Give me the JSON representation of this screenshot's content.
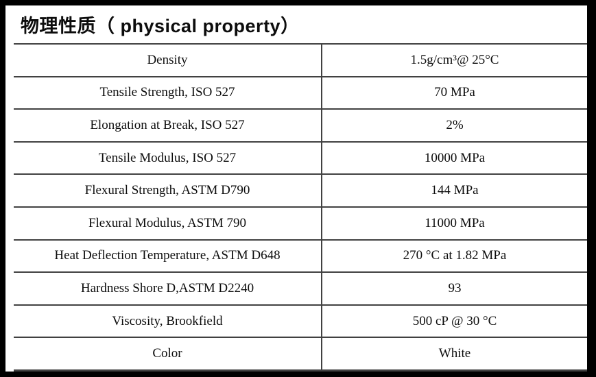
{
  "title": "物理性质（ physical property）",
  "table": {
    "rows": [
      {
        "property": "Density",
        "value": "1.5g/cm³@ 25°C"
      },
      {
        "property": "Tensile Strength, ISO 527",
        "value": "70 MPa"
      },
      {
        "property": "Elongation at Break, ISO 527",
        "value": "2%"
      },
      {
        "property": "Tensile Modulus, ISO 527",
        "value": "10000 MPa"
      },
      {
        "property": "Flexural Strength, ASTM D790",
        "value": "144 MPa"
      },
      {
        "property": "Flexural Modulus, ASTM 790",
        "value": "11000 MPa"
      },
      {
        "property": "Heat Deflection Temperature, ASTM D648",
        "value": "270 °C at 1.82 MPa"
      },
      {
        "property": "Hardness Shore D,ASTM D2240",
        "value": "93"
      },
      {
        "property": "Viscosity, Brookfield",
        "value": "500 cP @ 30 °C"
      },
      {
        "property": "Color",
        "value": "White"
      }
    ]
  },
  "colors": {
    "frame": "#000000",
    "grid_line": "#414141",
    "text": "#0d0d0d",
    "background": "#ffffff"
  }
}
